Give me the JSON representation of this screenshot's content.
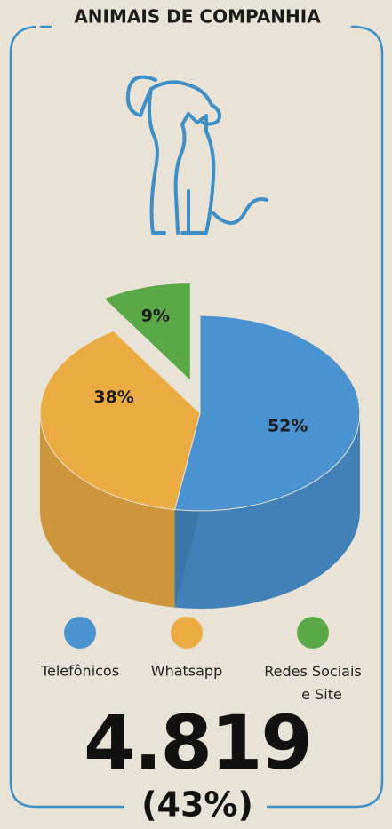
{
  "chart_data": {
    "type": "pie",
    "title": "ANIMAIS DE COMPANHIA",
    "categories": [
      "Telefônicos",
      "Whatsapp",
      "Redes Sociais e Site"
    ],
    "values": [
      52,
      38,
      9
    ],
    "value_labels": [
      "52%",
      "38%",
      "9%"
    ],
    "colors": [
      "#4a93d0",
      "#e9ab42",
      "#5aa846"
    ],
    "total": "4.819",
    "share": "(43%)"
  }
}
